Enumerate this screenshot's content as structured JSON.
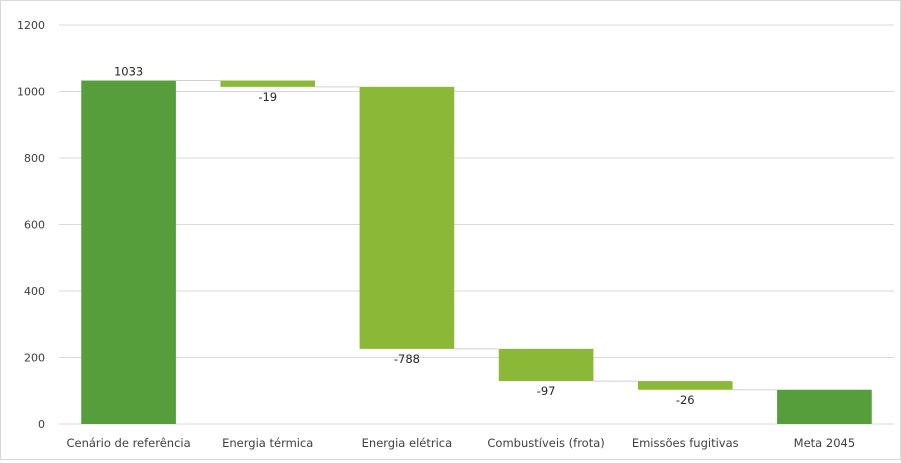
{
  "chart_data": {
    "type": "waterfall",
    "categories": [
      "Cenário de referência",
      "Energia térmica",
      "Energia elétrica",
      "Combustíveis (frota)",
      "Emissões fugitivas",
      "Meta 2045"
    ],
    "values": [
      1033,
      -19,
      -788,
      -97,
      -26,
      103
    ],
    "kinds": [
      "total",
      "delta",
      "delta",
      "delta",
      "delta",
      "total"
    ],
    "data_labels": [
      "1033",
      "-19",
      "-788",
      "-97",
      "-26",
      ""
    ],
    "ylim": [
      0,
      1200
    ],
    "yticks": [
      0,
      200,
      400,
      600,
      800,
      1000,
      1200
    ],
    "ytick_labels": [
      "0",
      "200",
      "400",
      "600",
      "800",
      "1000",
      "1200"
    ],
    "grid": true,
    "legend": "none",
    "colors": {
      "total": "#569d3b",
      "delta": "#8bb837",
      "grid": "#d9d9d9",
      "connector": "#d0d0d0",
      "text": "#404040"
    }
  }
}
